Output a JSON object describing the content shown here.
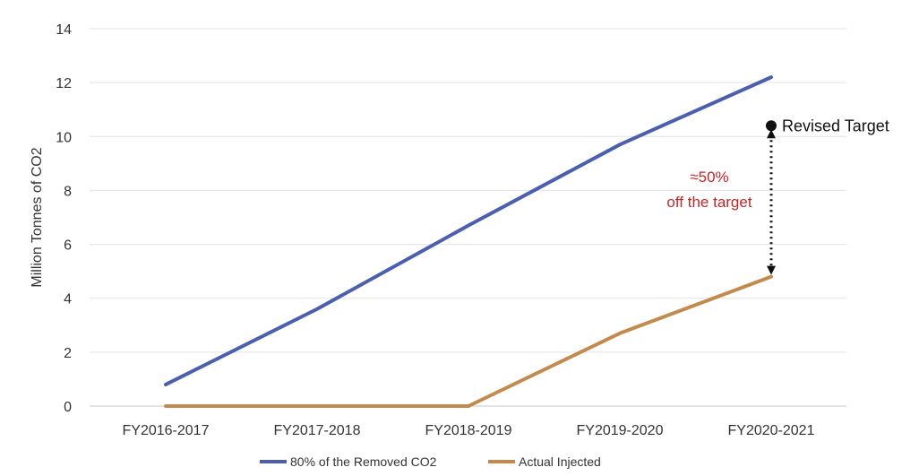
{
  "chart_data": {
    "type": "line",
    "categories": [
      "FY2016-2017",
      "FY2017-2018",
      "FY2018-2019",
      "FY2019-2020",
      "FY2020-2021"
    ],
    "series": [
      {
        "name": "80% of the Removed CO2",
        "values": [
          0.8,
          3.6,
          6.7,
          9.7,
          12.2
        ],
        "color": "#4a5fae"
      },
      {
        "name": "Actual Injected",
        "values": [
          0,
          0,
          0,
          2.7,
          4.8
        ],
        "color": "#c38a4e"
      }
    ],
    "ylabel": "Million Tonnes of CO2",
    "xlabel": "",
    "ylim": [
      0,
      14
    ],
    "yticks": [
      0,
      2,
      4,
      6,
      8,
      10,
      12,
      14
    ],
    "grid": true,
    "legend_position": "bottom",
    "annotations": {
      "revised_target": {
        "label": "Revised Target",
        "category": "FY2020-2021",
        "value": 10.4
      },
      "gap_lines": [
        "≈50%",
        "off the target"
      ],
      "arrow_from_value": 10.4,
      "arrow_to_value": 4.8
    }
  }
}
